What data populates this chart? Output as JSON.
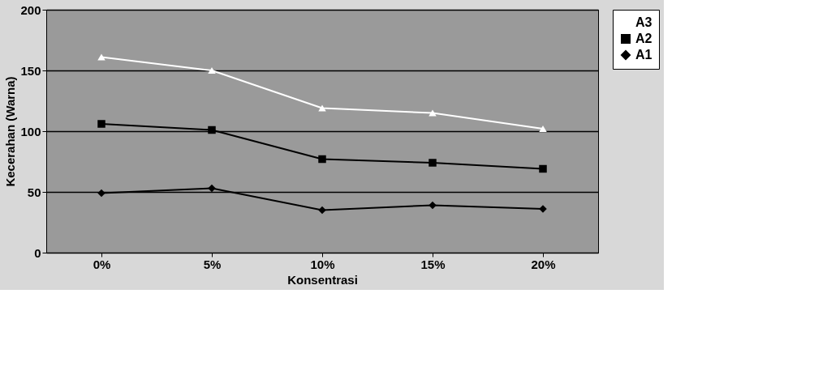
{
  "chart_data": {
    "type": "line",
    "xlabel": "Konsentrasi",
    "ylabel": "Kecerahan (Warna)",
    "categories": [
      "0%",
      "5%",
      "10%",
      "15%",
      "20%"
    ],
    "series": [
      {
        "name": "A3",
        "color": "#ffffff",
        "marker": "triangle",
        "values": [
          161,
          150,
          119,
          115,
          102
        ]
      },
      {
        "name": "A2",
        "color": "#000000",
        "marker": "square",
        "values": [
          106,
          101,
          77,
          74,
          69
        ]
      },
      {
        "name": "A1",
        "color": "#000000",
        "marker": "diamond",
        "values": [
          49,
          53,
          35,
          39,
          36
        ]
      }
    ],
    "ylim": [
      0,
      200
    ],
    "yticks": [
      0,
      50,
      100,
      150,
      200
    ],
    "grid": "y",
    "legend": "right"
  }
}
